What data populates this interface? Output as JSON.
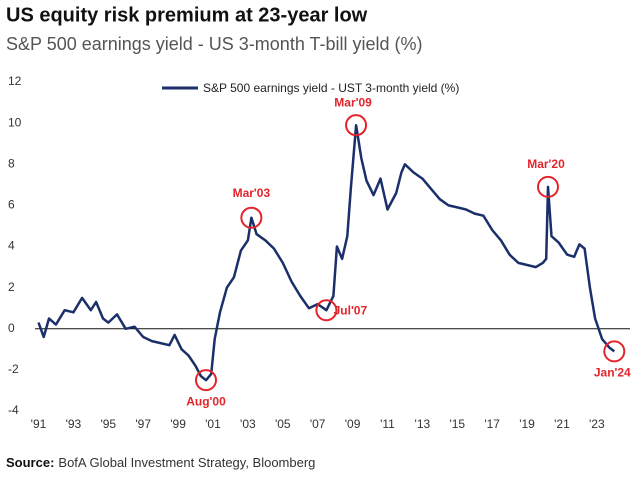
{
  "chart_data": {
    "type": "line",
    "title": "US equity risk premium at 23-year low",
    "subtitle": "S&P 500 earnings yield - US 3-month T-bill yield (%)",
    "source_label": "Source:",
    "source": "BofA Global Investment Strategy, Bloomberg",
    "legend": "top",
    "series": [
      {
        "name": "S&P 500 earnings yield - UST 3-month yield (%)",
        "color": "#1b2f6b",
        "x": [
          1991.0,
          1991.3,
          1991.6,
          1992.0,
          1992.5,
          1993.0,
          1993.5,
          1994.0,
          1994.3,
          1994.7,
          1995.0,
          1995.5,
          1996.0,
          1996.5,
          1997.0,
          1997.5,
          1998.0,
          1998.5,
          1998.8,
          1999.2,
          1999.6,
          2000.0,
          2000.3,
          2000.6,
          2000.9,
          2001.1,
          2001.4,
          2001.8,
          2002.2,
          2002.6,
          2003.0,
          2003.2,
          2003.5,
          2004.0,
          2004.5,
          2005.0,
          2005.5,
          2006.0,
          2006.5,
          2007.0,
          2007.5,
          2007.9,
          2008.1,
          2008.4,
          2008.7,
          2008.9,
          2009.2,
          2009.5,
          2009.8,
          2010.2,
          2010.6,
          2011.0,
          2011.5,
          2011.8,
          2012.0,
          2012.5,
          2013.0,
          2013.5,
          2014.0,
          2014.5,
          2015.0,
          2015.5,
          2016.0,
          2016.5,
          2017.0,
          2017.5,
          2018.0,
          2018.5,
          2019.0,
          2019.5,
          2019.9,
          2020.1,
          2020.2,
          2020.4,
          2020.8,
          2021.3,
          2021.7,
          2022.0,
          2022.3,
          2022.6,
          2022.9,
          2023.3,
          2023.7,
          2024.0
        ],
        "values": [
          0.3,
          -0.4,
          0.5,
          0.2,
          0.9,
          0.8,
          1.5,
          0.9,
          1.3,
          0.5,
          0.3,
          0.7,
          0.0,
          0.1,
          -0.4,
          -0.6,
          -0.7,
          -0.8,
          -0.3,
          -1.0,
          -1.3,
          -1.8,
          -2.3,
          -2.5,
          -2.2,
          -0.5,
          0.8,
          2.0,
          2.5,
          3.8,
          4.3,
          5.4,
          4.6,
          4.3,
          3.9,
          3.2,
          2.3,
          1.6,
          1.0,
          1.2,
          0.9,
          1.6,
          4.0,
          3.4,
          4.5,
          6.8,
          9.9,
          8.3,
          7.2,
          6.5,
          7.3,
          5.8,
          6.6,
          7.6,
          8.0,
          7.6,
          7.3,
          6.8,
          6.3,
          6.0,
          5.9,
          5.8,
          5.6,
          5.5,
          4.8,
          4.3,
          3.6,
          3.2,
          3.1,
          3.0,
          3.2,
          3.4,
          6.9,
          4.5,
          4.2,
          3.6,
          3.5,
          4.1,
          3.9,
          2.0,
          0.5,
          -0.5,
          -0.9,
          -1.1
        ]
      }
    ],
    "annotations": [
      {
        "label": "Aug'00",
        "x": 2000.6,
        "y": -2.5
      },
      {
        "label": "Mar'03",
        "x": 2003.2,
        "y": 5.4
      },
      {
        "label": "Jul'07",
        "x": 2007.5,
        "y": 0.9
      },
      {
        "label": "Mar'09",
        "x": 2009.2,
        "y": 9.9
      },
      {
        "label": "Mar'20",
        "x": 2020.2,
        "y": 6.9
      },
      {
        "label": "Jan'24",
        "x": 2024.0,
        "y": -1.1
      }
    ],
    "annotation_color": "#e3242b",
    "reference_line": 0,
    "xlim": [
      1990.8,
      2024.9
    ],
    "xticks": [
      {
        "value": 1991,
        "label": "'91"
      },
      {
        "value": 1993,
        "label": "'93"
      },
      {
        "value": 1995,
        "label": "'95"
      },
      {
        "value": 1997,
        "label": "'97"
      },
      {
        "value": 1999,
        "label": "'99"
      },
      {
        "value": 2001,
        "label": "'01"
      },
      {
        "value": 2003,
        "label": "'03"
      },
      {
        "value": 2005,
        "label": "'05"
      },
      {
        "value": 2007,
        "label": "'07"
      },
      {
        "value": 2009,
        "label": "'09"
      },
      {
        "value": 2011,
        "label": "'11"
      },
      {
        "value": 2013,
        "label": "'13"
      },
      {
        "value": 2015,
        "label": "'15"
      },
      {
        "value": 2017,
        "label": "'17"
      },
      {
        "value": 2019,
        "label": "'19"
      },
      {
        "value": 2021,
        "label": "'21"
      },
      {
        "value": 2023,
        "label": "'23"
      }
    ],
    "ylim": [
      -4,
      12
    ],
    "yticks": [
      -4,
      -2,
      0,
      2,
      4,
      6,
      8,
      10,
      12
    ]
  }
}
